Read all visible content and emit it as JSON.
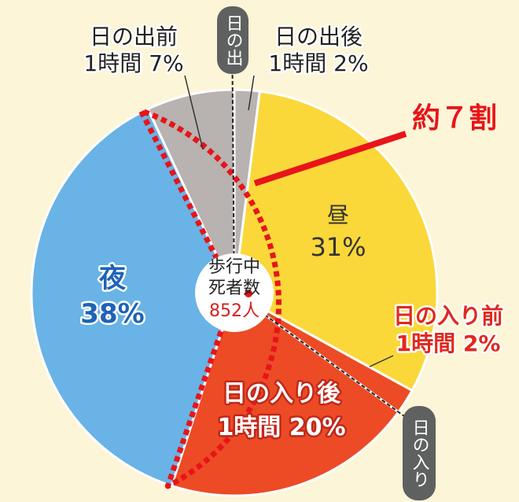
{
  "chart_data": {
    "type": "pie",
    "center_label": {
      "line1": "歩行中",
      "line2": "死者数",
      "total": "852人"
    },
    "slices": [
      {
        "name": "日の出後1時間",
        "line1": "日の出後",
        "line2": "1時間 2%",
        "value": 2,
        "color": "#b8b2b0"
      },
      {
        "name": "昼",
        "line1": "昼",
        "line2": "31%",
        "value": 31,
        "color": "#fad83a"
      },
      {
        "name": "日の入り前1時間",
        "line1": "日の入り前",
        "line2": "1時間 2%",
        "value": 2,
        "color": "#ec4b25"
      },
      {
        "name": "日の入り後1時間",
        "line1": "日の入り後",
        "line2": "1時間 20%",
        "value": 20,
        "color": "#ec4b25"
      },
      {
        "name": "夜",
        "line1": "夜",
        "line2": "38%",
        "value": 38,
        "color": "#69b3e6"
      },
      {
        "name": "日の出前1時間",
        "line1": "日の出前",
        "line2": "1時間 7%",
        "value": 7,
        "color": "#b8b2b0"
      }
    ],
    "markers": {
      "sunrise": "日の出",
      "sunset": "日の入り"
    },
    "annotation": {
      "text": "約７割",
      "color": "#e8141a"
    }
  }
}
